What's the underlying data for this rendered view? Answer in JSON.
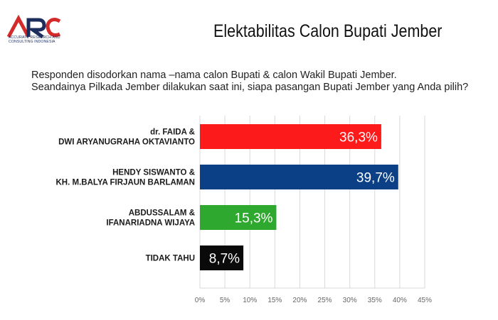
{
  "header": {
    "logo_text": "ARC",
    "logo_subtitle": "ACCURATE RESEARCH AND CONSULTING INDONESIA",
    "title": "Elektabilitas Calon Bupati Jember"
  },
  "question": {
    "line1": "Responden disodorkan nama –nama calon Bupati & calon Wakil Bupati Jember.",
    "line2": "Seandainya Pilkada Jember dilakukan saat ini, siapa pasangan Bupati Jember yang Anda pilih?"
  },
  "colors": {
    "red": "#fc1a1a",
    "blue": "#0b3f86",
    "green": "#2ea82e",
    "black": "#0a0a0a",
    "grid": "#d9d9d9",
    "logo_red": "#d42a2a",
    "logo_navy": "#1c2c5c"
  },
  "chart_data": {
    "type": "bar",
    "orientation": "horizontal",
    "categories": [
      [
        "dr. FAIDA &",
        "DWI ARYANUGRAHA OKTAVIANTO"
      ],
      [
        "HENDY SISWANTO &",
        "KH. M.BALYA FIRJAUN BARLAMAN"
      ],
      [
        "ABDUSSALAM &",
        "IFANARIADNA WIJAYA"
      ],
      [
        "TIDAK TAHU"
      ]
    ],
    "values": [
      36.3,
      39.7,
      15.3,
      8.7
    ],
    "value_labels": [
      "36,3%",
      "39,7%",
      "15,3%",
      "8,7%"
    ],
    "bar_colors": [
      "#fc1a1a",
      "#0b3f86",
      "#2ea82e",
      "#0a0a0a"
    ],
    "xlim": [
      0,
      45
    ],
    "xticks": [
      0,
      5,
      10,
      15,
      20,
      25,
      30,
      35,
      40,
      45
    ],
    "xtick_labels": [
      "0%",
      "5%",
      "10%",
      "15%",
      "20%",
      "25%",
      "30%",
      "35%",
      "40%",
      "45%"
    ],
    "grid": true,
    "legend": false
  }
}
